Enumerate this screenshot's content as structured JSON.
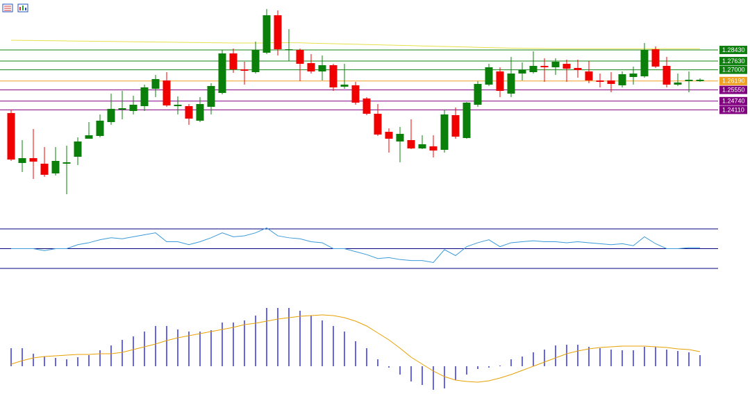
{
  "chart_data": [
    {
      "type": "candlestick",
      "open": [
        1.2388,
        1.2028,
        1.2063,
        1.2023,
        1.1953,
        1.2023,
        1.2073,
        1.2203,
        1.2223,
        1.2323,
        1.2413,
        1.2403,
        1.2438,
        1.2563,
        1.2623,
        1.2438,
        1.2438,
        1.2333,
        1.2433,
        1.2533,
        1.2818,
        1.2703,
        1.2683,
        1.2823,
        1.3093,
        1.2843,
        1.2843,
        1.2748,
        1.2688,
        1.2733,
        1.2578,
        1.2588,
        1.2493,
        1.2383,
        1.2253,
        1.2183,
        1.2193,
        1.2133,
        1.2148,
        1.2123,
        1.2373,
        1.2208,
        1.2448,
        1.2593,
        1.2688,
        1.2528,
        1.2673,
        1.2683,
        1.2728,
        1.2718,
        1.2743,
        1.2713,
        1.2688,
        1.2623,
        1.2623,
        1.2588,
        1.2648,
        1.2653,
        1.2848,
        1.2728,
        1.2593,
        1.2618,
        1.2618
      ],
      "high": [
        1.2413,
        1.2193,
        1.2273,
        1.2143,
        1.2143,
        1.2153,
        1.2213,
        1.2323,
        1.2378,
        1.2528,
        1.2548,
        1.2513,
        1.2593,
        1.2663,
        1.2683,
        1.2508,
        1.2453,
        1.2503,
        1.2603,
        1.2843,
        1.2853,
        1.2758,
        1.2903,
        1.3138,
        1.3128,
        1.2993,
        1.2853,
        1.2813,
        1.2803,
        1.2743,
        1.2743,
        1.2613,
        1.2503,
        1.2453,
        1.2278,
        1.2288,
        1.2343,
        1.2228,
        1.2228,
        1.2413,
        1.2428,
        1.2468,
        1.2618,
        1.2743,
        1.2718,
        1.2793,
        1.2753,
        1.2833,
        1.2783,
        1.2783,
        1.2773,
        1.2773,
        1.2763,
        1.2673,
        1.2683,
        1.2688,
        1.2723,
        1.2893,
        1.2868,
        1.2793,
        1.2673,
        1.2688,
        1.2638
      ],
      "low": [
        1.2043,
        1.1963,
        1.1913,
        1.1928,
        1.1938,
        1.1803,
        1.2013,
        1.2203,
        1.2213,
        1.2303,
        1.2343,
        1.2378,
        1.2403,
        1.2503,
        1.2433,
        1.2378,
        1.2303,
        1.2323,
        1.2378,
        1.2523,
        1.2678,
        1.2593,
        1.2673,
        1.2813,
        1.2803,
        1.2763,
        1.2618,
        1.2673,
        1.2623,
        1.2548,
        1.2563,
        1.2448,
        1.2373,
        1.2223,
        1.2103,
        1.2033,
        1.2128,
        1.2128,
        1.2068,
        1.2103,
        1.2203,
        1.2203,
        1.2433,
        1.2583,
        1.2503,
        1.2503,
        1.2623,
        1.2673,
        1.2613,
        1.2663,
        1.2613,
        1.2643,
        1.2603,
        1.2573,
        1.2538,
        1.2573,
        1.2593,
        1.2643,
        1.2713,
        1.2573,
        1.2583,
        1.2538,
        1.2613
      ],
      "close": [
        1.2053,
        1.2063,
        1.2038,
        1.1943,
        1.2043,
        1.2033,
        1.2183,
        1.2228,
        1.2333,
        1.2418,
        1.2423,
        1.2448,
        1.2573,
        1.2633,
        1.2443,
        1.2448,
        1.2348,
        1.2453,
        1.2583,
        1.2818,
        1.2703,
        1.2693,
        1.2843,
        1.3093,
        1.2848,
        1.2848,
        1.2743,
        1.2688,
        1.2733,
        1.2573,
        1.2593,
        1.2463,
        1.2383,
        1.2233,
        1.2203,
        1.2238,
        1.2133,
        1.2163,
        1.2118,
        1.2378,
        1.2218,
        1.2463,
        1.2598,
        1.2718,
        1.2548,
        1.2673,
        1.2698,
        1.2728,
        1.2718,
        1.2758,
        1.2708,
        1.2698,
        1.2623,
        1.2613,
        1.2598,
        1.2668,
        1.2673,
        1.2843,
        1.2723,
        1.2593,
        1.2608,
        1.2628,
        1.2628
      ],
      "up_color": "#0a800a",
      "down_color": "#f00000",
      "ma": {
        "color": "#e6e04a",
        "values": [
          1.2913,
          1.2912,
          1.2911,
          1.291,
          1.2909,
          1.2908,
          1.2907,
          1.2906,
          1.2905,
          1.2904,
          1.2903,
          1.2902,
          1.2901,
          1.29,
          1.2899,
          1.2898,
          1.2897,
          1.2896,
          1.2895,
          1.2894,
          1.2893,
          1.2893,
          1.2893,
          1.2894,
          1.2895,
          1.2895,
          1.2894,
          1.2892,
          1.289,
          1.2888,
          1.2886,
          1.2884,
          1.2882,
          1.288,
          1.2878,
          1.2876,
          1.2874,
          1.2872,
          1.287,
          1.2868,
          1.2866,
          1.2864,
          1.2862,
          1.286,
          1.2858,
          1.2856,
          1.2855,
          1.2854,
          1.2853,
          1.2852,
          1.2852,
          1.2852,
          1.2852,
          1.2852,
          1.2852,
          1.2852,
          1.2852,
          1.2852,
          1.2852,
          1.2852,
          1.2852,
          1.2852,
          1.2852
        ]
      },
      "levels": [
        {
          "value": 1.2843,
          "label": "1.28430",
          "color": "#108010"
        },
        {
          "value": 1.2763,
          "label": "1.27630",
          "color": "#108010"
        },
        {
          "value": 1.27,
          "label": "1.27000",
          "color": "#108010"
        },
        {
          "value": 1.2619,
          "label": "1.26190",
          "color": "#f0a020"
        },
        {
          "value": 1.2555,
          "label": "1.25550",
          "color": "#800080"
        },
        {
          "value": 1.2474,
          "label": "1.24740",
          "color": "#800080"
        },
        {
          "value": 1.2411,
          "label": "1.24110",
          "color": "#800080"
        }
      ],
      "ylim": [
        1.1613,
        1.3203
      ]
    },
    {
      "type": "line",
      "color": "#3a9ad9",
      "values": [
        50,
        50,
        50,
        48,
        50,
        50,
        54,
        56,
        59,
        61,
        60,
        62,
        64,
        66,
        57,
        57,
        54,
        57,
        61,
        66,
        62,
        63,
        66,
        71,
        63,
        61,
        60,
        57,
        56,
        50,
        50,
        47,
        44,
        40,
        41,
        39,
        38,
        38,
        36,
        49,
        43,
        52,
        56,
        59,
        52,
        56,
        57,
        58,
        57,
        57,
        56,
        57,
        56,
        55,
        54,
        55,
        53,
        62,
        55,
        50,
        50,
        51,
        51
      ],
      "levels": [
        70,
        50,
        30
      ],
      "level_color": "#000080",
      "ylim": [
        24.4,
        77.0
      ]
    },
    {
      "type": "histogram",
      "color": "#0000cc",
      "values": [
        0.0026,
        0.0026,
        0.0018,
        0.0014,
        0.0012,
        0.001,
        0.0013,
        0.0016,
        0.0023,
        0.003,
        0.0038,
        0.0043,
        0.005,
        0.0058,
        0.0058,
        0.0053,
        0.005,
        0.005,
        0.0052,
        0.0063,
        0.0063,
        0.0066,
        0.0073,
        0.0084,
        0.0084,
        0.0084,
        0.008,
        0.0073,
        0.0066,
        0.0058,
        0.005,
        0.0036,
        0.0026,
        0.001,
        -0.0002,
        -0.0012,
        -0.0022,
        -0.0027,
        -0.0034,
        -0.0032,
        -0.002,
        -0.0012,
        -0.0004,
        -0.0002,
        0.0001,
        0.001,
        0.0014,
        0.002,
        0.0024,
        0.003,
        0.0031,
        0.0031,
        0.0028,
        0.0026,
        0.0024,
        0.0023,
        0.0023,
        0.0028,
        0.0028,
        0.0024,
        0.0022,
        0.002,
        0.0016
      ],
      "signal": {
        "color": "#e8a000",
        "values": [
          0.0003,
          0.0008,
          0.0012,
          0.0014,
          0.0015,
          0.0016,
          0.0017,
          0.0017,
          0.0018,
          0.0018,
          0.002,
          0.0024,
          0.0028,
          0.0032,
          0.0037,
          0.0041,
          0.0044,
          0.0047,
          0.005,
          0.0053,
          0.0056,
          0.006,
          0.0062,
          0.0065,
          0.0068,
          0.007,
          0.0072,
          0.0073,
          0.0074,
          0.0073,
          0.007,
          0.0065,
          0.0058,
          0.0048,
          0.0038,
          0.0026,
          0.0013,
          0.0003,
          -0.0007,
          -0.0015,
          -0.002,
          -0.0022,
          -0.0023,
          -0.0021,
          -0.0017,
          -0.0012,
          -0.0006,
          0,
          0.0006,
          0.0012,
          0.0018,
          0.0022,
          0.0025,
          0.0027,
          0.0028,
          0.0029,
          0.0029,
          0.0029,
          0.0028,
          0.0027,
          0.0025,
          0.0024,
          0.0021
        ]
      },
      "ylim": [
        -0.0066,
        0.0128
      ]
    }
  ]
}
